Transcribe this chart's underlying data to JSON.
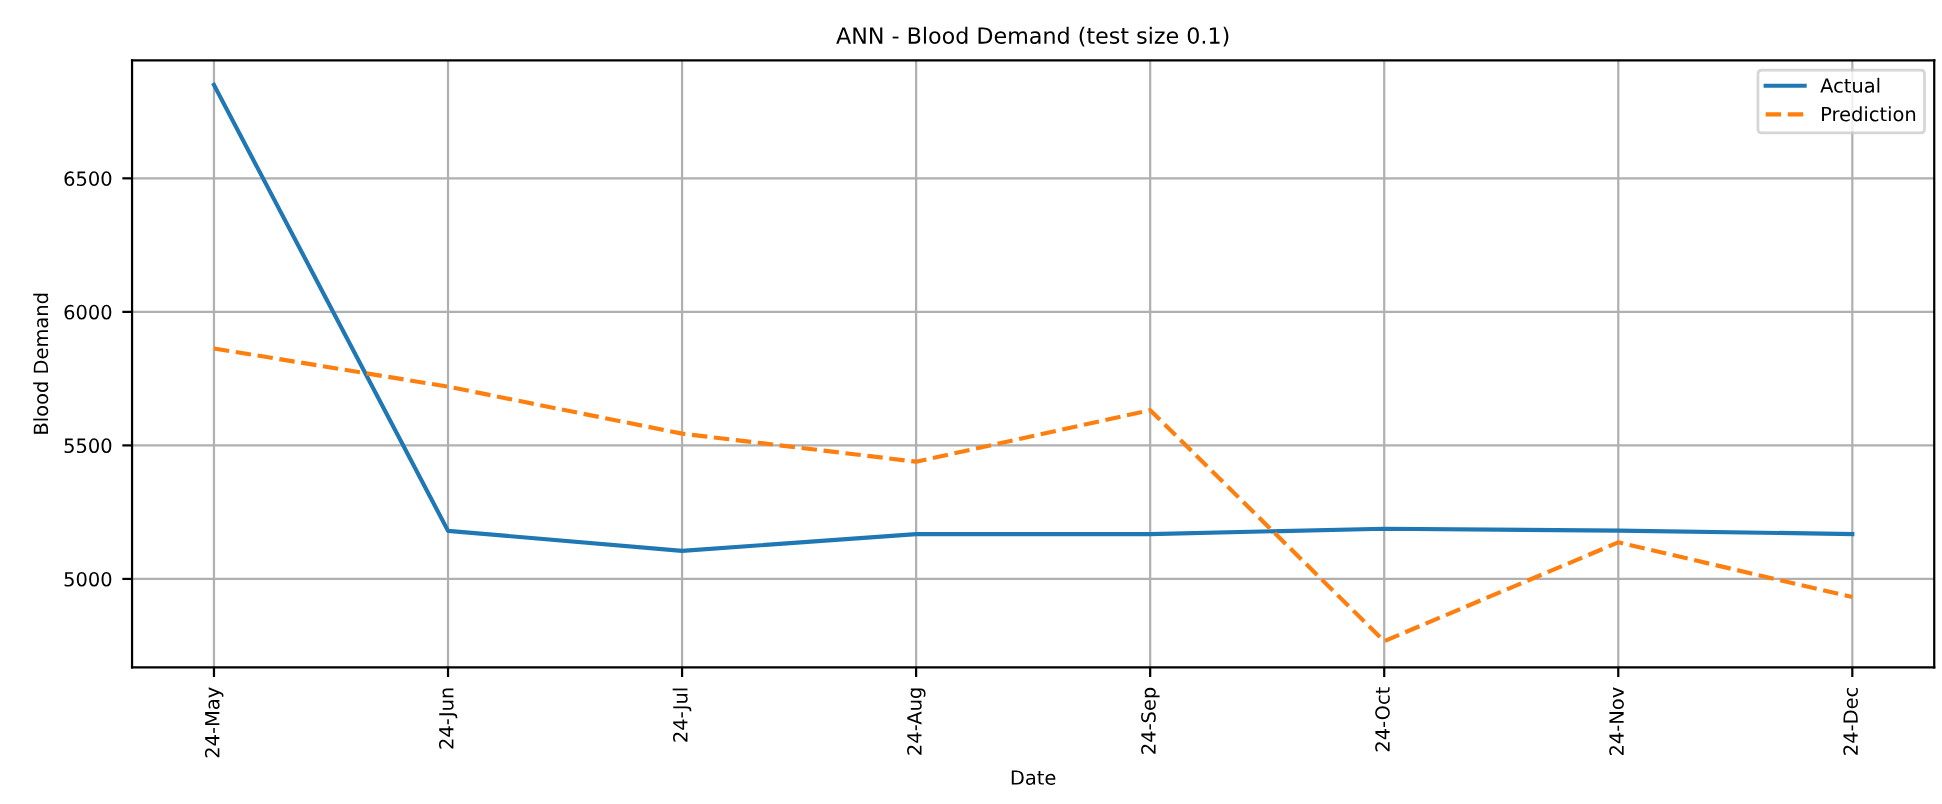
{
  "chart_data": {
    "type": "line",
    "title": "ANN - Blood Demand (test size 0.1)",
    "xlabel": "Date",
    "ylabel": "Blood Demand",
    "categories": [
      "24-May",
      "24-Jun",
      "24-Jul",
      "24-Aug",
      "24-Sep",
      "24-Oct",
      "24-Nov",
      "24-Dec"
    ],
    "series": [
      {
        "name": "Actual",
        "color": "#1f77b4",
        "line_style": "solid",
        "values": [
          6850,
          5180,
          5105,
          5168,
          5168,
          5188,
          5181,
          5168
        ]
      },
      {
        "name": "Prediction",
        "color": "#ff7f0e",
        "line_style": "dashed",
        "values": [
          5863,
          5720,
          5544,
          5439,
          5632,
          4767,
          5137,
          4932
        ]
      }
    ],
    "ylim": [
      4669,
      6942
    ],
    "yticks": [
      5000,
      5500,
      6000,
      6500
    ],
    "grid": true,
    "legend": "top right"
  }
}
